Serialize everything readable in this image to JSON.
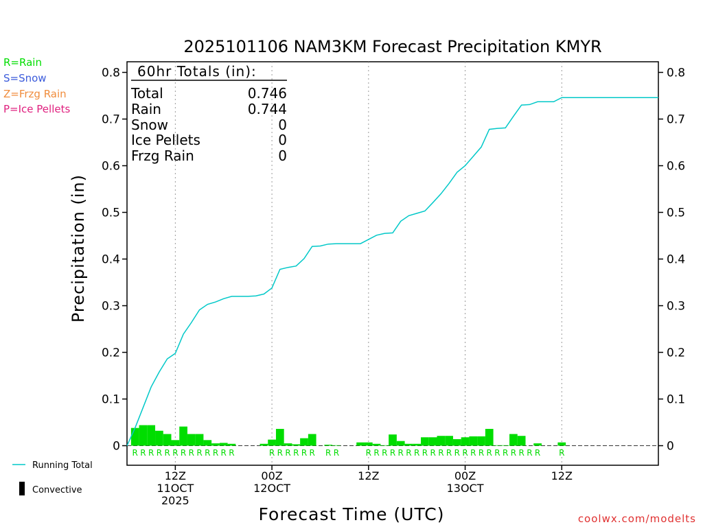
{
  "title": "2025101106 NAM3KM Forecast Precipitation KMYR",
  "legend_types": [
    {
      "label": "R=Rain",
      "color": "#00dd00"
    },
    {
      "label": "S=Snow",
      "color": "#3b5bdb"
    },
    {
      "label": "Z=Frzg Rain",
      "color": "#f08c3c"
    },
    {
      "label": "P=Ice Pellets",
      "color": "#e0207f"
    }
  ],
  "totals": {
    "header": "60hr Totals (in):",
    "rows": [
      {
        "label": "Total",
        "value": "0.746"
      },
      {
        "label": "Rain",
        "value": "0.744"
      },
      {
        "label": "Snow",
        "value": "0"
      },
      {
        "label": "Ice Pellets",
        "value": "0"
      },
      {
        "label": "Frzg Rain",
        "value": "0"
      }
    ]
  },
  "legend_bottom": {
    "running_total": "Running Total",
    "convective": "Convective"
  },
  "watermark": "coolwx.com/modelts",
  "colors": {
    "running_total": "#00c8c8",
    "precip_bar": "#00dd00",
    "rain_marker": "#00dd00",
    "axis": "#000000",
    "grid": "#999999"
  },
  "chart_data": {
    "type": "bar",
    "title": "2025101106 NAM3KM Forecast Precipitation KMYR",
    "xlabel": "Forecast Time (UTC)",
    "ylabel": "Precipitation (in)",
    "ylim": [
      0,
      0.8
    ],
    "yticks": [
      0,
      0.1,
      0.2,
      0.3,
      0.4,
      0.5,
      0.6,
      0.7,
      0.8
    ],
    "xlim_hours": [
      0,
      66
    ],
    "x_tick_groups": [
      {
        "hour": 6,
        "lines": [
          "12Z",
          "11OCT",
          "2025"
        ]
      },
      {
        "hour": 18,
        "lines": [
          "00Z",
          "12OCT"
        ]
      },
      {
        "hour": 30,
        "lines": [
          "12Z"
        ]
      },
      {
        "hour": 42,
        "lines": [
          "00Z",
          "13OCT"
        ]
      },
      {
        "hour": 54,
        "lines": [
          "12Z"
        ]
      }
    ],
    "hourly_precip": [
      {
        "hour": 1,
        "value": 0.038
      },
      {
        "hour": 2,
        "value": 0.044
      },
      {
        "hour": 3,
        "value": 0.044
      },
      {
        "hour": 4,
        "value": 0.032
      },
      {
        "hour": 5,
        "value": 0.025
      },
      {
        "hour": 6,
        "value": 0.012
      },
      {
        "hour": 7,
        "value": 0.041
      },
      {
        "hour": 8,
        "value": 0.025
      },
      {
        "hour": 9,
        "value": 0.025
      },
      {
        "hour": 10,
        "value": 0.012
      },
      {
        "hour": 11,
        "value": 0.005
      },
      {
        "hour": 12,
        "value": 0.006
      },
      {
        "hour": 13,
        "value": 0.004
      },
      {
        "hour": 17,
        "value": 0.004
      },
      {
        "hour": 18,
        "value": 0.013
      },
      {
        "hour": 19,
        "value": 0.036
      },
      {
        "hour": 20,
        "value": 0.005
      },
      {
        "hour": 21,
        "value": 0.003
      },
      {
        "hour": 22,
        "value": 0.016
      },
      {
        "hour": 23,
        "value": 0.025
      },
      {
        "hour": 25,
        "value": 0.002
      },
      {
        "hour": 26,
        "value": 0.001
      },
      {
        "hour": 29,
        "value": 0.007
      },
      {
        "hour": 30,
        "value": 0.007
      },
      {
        "hour": 31,
        "value": 0.004
      },
      {
        "hour": 32,
        "value": 0.001
      },
      {
        "hour": 33,
        "value": 0.024
      },
      {
        "hour": 34,
        "value": 0.01
      },
      {
        "hour": 35,
        "value": 0.004
      },
      {
        "hour": 36,
        "value": 0.004
      },
      {
        "hour": 37,
        "value": 0.018
      },
      {
        "hour": 38,
        "value": 0.018
      },
      {
        "hour": 39,
        "value": 0.021
      },
      {
        "hour": 40,
        "value": 0.021
      },
      {
        "hour": 41,
        "value": 0.014
      },
      {
        "hour": 42,
        "value": 0.018
      },
      {
        "hour": 43,
        "value": 0.02
      },
      {
        "hour": 44,
        "value": 0.02
      },
      {
        "hour": 45,
        "value": 0.036
      },
      {
        "hour": 46,
        "value": 0.001
      },
      {
        "hour": 47,
        "value": 0.001
      },
      {
        "hour": 48,
        "value": 0.025
      },
      {
        "hour": 49,
        "value": 0.021
      },
      {
        "hour": 51,
        "value": 0.005
      },
      {
        "hour": 54,
        "value": 0.007
      }
    ],
    "running_total": [
      {
        "hour": 0,
        "value": 0.0
      },
      {
        "hour": 1,
        "value": 0.038
      },
      {
        "hour": 2,
        "value": 0.082
      },
      {
        "hour": 3,
        "value": 0.126
      },
      {
        "hour": 4,
        "value": 0.158
      },
      {
        "hour": 5,
        "value": 0.186
      },
      {
        "hour": 6,
        "value": 0.198
      },
      {
        "hour": 7,
        "value": 0.239
      },
      {
        "hour": 8,
        "value": 0.264
      },
      {
        "hour": 9,
        "value": 0.291
      },
      {
        "hour": 10,
        "value": 0.303
      },
      {
        "hour": 11,
        "value": 0.308
      },
      {
        "hour": 12,
        "value": 0.315
      },
      {
        "hour": 13,
        "value": 0.32
      },
      {
        "hour": 14,
        "value": 0.32
      },
      {
        "hour": 15,
        "value": 0.32
      },
      {
        "hour": 16,
        "value": 0.321
      },
      {
        "hour": 17,
        "value": 0.325
      },
      {
        "hour": 18,
        "value": 0.338
      },
      {
        "hour": 19,
        "value": 0.378
      },
      {
        "hour": 20,
        "value": 0.382
      },
      {
        "hour": 21,
        "value": 0.385
      },
      {
        "hour": 22,
        "value": 0.401
      },
      {
        "hour": 23,
        "value": 0.427
      },
      {
        "hour": 24,
        "value": 0.428
      },
      {
        "hour": 25,
        "value": 0.432
      },
      {
        "hour": 26,
        "value": 0.433
      },
      {
        "hour": 27,
        "value": 0.433
      },
      {
        "hour": 28,
        "value": 0.433
      },
      {
        "hour": 29,
        "value": 0.433
      },
      {
        "hour": 30,
        "value": 0.442
      },
      {
        "hour": 31,
        "value": 0.451
      },
      {
        "hour": 32,
        "value": 0.455
      },
      {
        "hour": 33,
        "value": 0.456
      },
      {
        "hour": 34,
        "value": 0.481
      },
      {
        "hour": 35,
        "value": 0.493
      },
      {
        "hour": 36,
        "value": 0.498
      },
      {
        "hour": 37,
        "value": 0.503
      },
      {
        "hour": 38,
        "value": 0.521
      },
      {
        "hour": 39,
        "value": 0.54
      },
      {
        "hour": 40,
        "value": 0.562
      },
      {
        "hour": 41,
        "value": 0.586
      },
      {
        "hour": 42,
        "value": 0.6
      },
      {
        "hour": 43,
        "value": 0.62
      },
      {
        "hour": 44,
        "value": 0.64
      },
      {
        "hour": 45,
        "value": 0.678
      },
      {
        "hour": 46,
        "value": 0.68
      },
      {
        "hour": 47,
        "value": 0.681
      },
      {
        "hour": 48,
        "value": 0.706
      },
      {
        "hour": 49,
        "value": 0.73
      },
      {
        "hour": 50,
        "value": 0.731
      },
      {
        "hour": 51,
        "value": 0.737
      },
      {
        "hour": 52,
        "value": 0.737
      },
      {
        "hour": 53,
        "value": 0.737
      },
      {
        "hour": 54,
        "value": 0.746
      },
      {
        "hour": 55,
        "value": 0.746
      },
      {
        "hour": 60,
        "value": 0.746
      },
      {
        "hour": 66,
        "value": 0.746
      }
    ],
    "type_markers": [
      {
        "hour": 1,
        "type": "R"
      },
      {
        "hour": 2,
        "type": "R"
      },
      {
        "hour": 3,
        "type": "R"
      },
      {
        "hour": 4,
        "type": "R"
      },
      {
        "hour": 5,
        "type": "R"
      },
      {
        "hour": 6,
        "type": "R"
      },
      {
        "hour": 7,
        "type": "R"
      },
      {
        "hour": 8,
        "type": "R"
      },
      {
        "hour": 9,
        "type": "R"
      },
      {
        "hour": 10,
        "type": "R"
      },
      {
        "hour": 11,
        "type": "R"
      },
      {
        "hour": 12,
        "type": "R"
      },
      {
        "hour": 13,
        "type": "R"
      },
      {
        "hour": 18,
        "type": "R"
      },
      {
        "hour": 19,
        "type": "R"
      },
      {
        "hour": 20,
        "type": "R"
      },
      {
        "hour": 21,
        "type": "R"
      },
      {
        "hour": 22,
        "type": "R"
      },
      {
        "hour": 23,
        "type": "R"
      },
      {
        "hour": 25,
        "type": "R"
      },
      {
        "hour": 26,
        "type": "R"
      },
      {
        "hour": 30,
        "type": "R"
      },
      {
        "hour": 31,
        "type": "R"
      },
      {
        "hour": 32,
        "type": "R"
      },
      {
        "hour": 33,
        "type": "R"
      },
      {
        "hour": 34,
        "type": "R"
      },
      {
        "hour": 35,
        "type": "R"
      },
      {
        "hour": 36,
        "type": "R"
      },
      {
        "hour": 37,
        "type": "R"
      },
      {
        "hour": 38,
        "type": "R"
      },
      {
        "hour": 39,
        "type": "R"
      },
      {
        "hour": 40,
        "type": "R"
      },
      {
        "hour": 41,
        "type": "R"
      },
      {
        "hour": 42,
        "type": "R"
      },
      {
        "hour": 43,
        "type": "R"
      },
      {
        "hour": 44,
        "type": "R"
      },
      {
        "hour": 45,
        "type": "R"
      },
      {
        "hour": 46,
        "type": "R"
      },
      {
        "hour": 47,
        "type": "R"
      },
      {
        "hour": 48,
        "type": "R"
      },
      {
        "hour": 49,
        "type": "R"
      },
      {
        "hour": 50,
        "type": "R"
      },
      {
        "hour": 51,
        "type": "R"
      },
      {
        "hour": 54,
        "type": "R"
      }
    ]
  }
}
